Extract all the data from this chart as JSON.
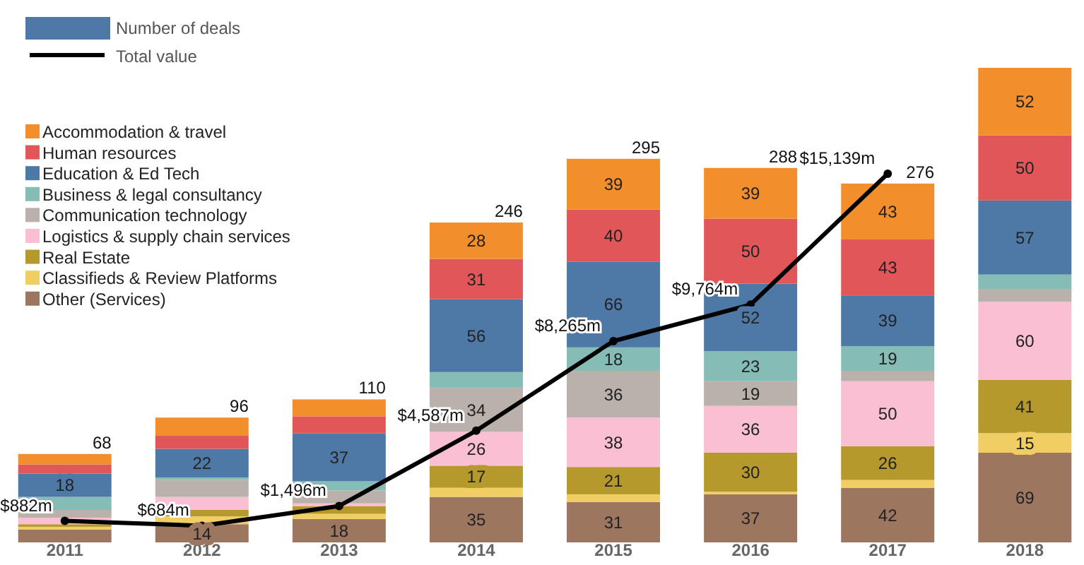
{
  "chart_data": {
    "type": "bar",
    "stacked": true,
    "legend": "top left",
    "legend_title": "Number of deals",
    "tick_labels": "x",
    "categories": [
      "2011",
      "2012",
      "2013",
      "2014",
      "2015",
      "2016",
      "2017",
      "2018"
    ],
    "totals": [
      "68",
      "96",
      "110",
      "246",
      "295",
      "288",
      "276",
      null
    ],
    "series": [
      {
        "name": "Other (Services)",
        "color": "#9d7660",
        "values": [
          10,
          14,
          18,
          35,
          31,
          37,
          42,
          69
        ],
        "value_labels": [
          null,
          "14",
          "18",
          "35",
          "31",
          "37",
          "42",
          "69"
        ]
      },
      {
        "name": "Classifieds & Review Platforms",
        "color": "#f1ce63",
        "values": [
          2,
          6,
          4,
          7,
          6,
          2,
          6,
          15
        ],
        "value_labels": [
          null,
          null,
          null,
          null,
          null,
          null,
          null,
          "15"
        ]
      },
      {
        "name": "Real Estate",
        "color": "#b6992d",
        "values": [
          2,
          5,
          6,
          17,
          21,
          30,
          26,
          41
        ],
        "value_labels": [
          null,
          null,
          null,
          "17",
          "21",
          "30",
          "26",
          "41"
        ]
      },
      {
        "name": "Logistics & supply chain services",
        "color": "#fabfd2",
        "values": [
          5,
          10,
          2,
          26,
          38,
          36,
          50,
          60
        ],
        "value_labels": [
          null,
          null,
          null,
          "26",
          "38",
          "36",
          "50",
          "60"
        ]
      },
      {
        "name": "Communication technology",
        "color": "#bab0ac",
        "values": [
          6,
          13,
          10,
          34,
          36,
          19,
          8,
          10
        ],
        "value_labels": [
          null,
          null,
          null,
          "34",
          "36",
          "19",
          null,
          null
        ]
      },
      {
        "name": "Business & legal consultancy",
        "color": "#86bcb6",
        "values": [
          10,
          2,
          7,
          12,
          18,
          23,
          19,
          11
        ],
        "value_labels": [
          null,
          null,
          null,
          null,
          "18",
          "23",
          "19",
          null
        ]
      },
      {
        "name": "Education & Ed Tech",
        "color": "#4e79a7",
        "values": [
          18,
          22,
          37,
          56,
          66,
          52,
          39,
          57
        ],
        "value_labels": [
          "18",
          "22",
          "37",
          "56",
          "66",
          "52",
          "39",
          "57"
        ]
      },
      {
        "name": "Human resources",
        "color": "#e15759",
        "values": [
          7,
          10,
          13,
          31,
          40,
          50,
          43,
          50
        ],
        "value_labels": [
          null,
          null,
          null,
          "31",
          "40",
          "50",
          "43",
          "50"
        ]
      },
      {
        "name": "Accommodation & travel",
        "color": "#f28e2b",
        "values": [
          8,
          14,
          13,
          28,
          39,
          39,
          43,
          52
        ],
        "value_labels": [
          null,
          null,
          null,
          "28",
          "39",
          "39",
          "43",
          "52"
        ]
      },
      {
        "name": "Total value",
        "type": "line",
        "axis": "y2",
        "color": "#000000",
        "marker": "circle",
        "values": [
          882,
          684,
          1496,
          4587,
          8265,
          9764,
          15139,
          null
        ],
        "value_labels": [
          "$882m",
          "$684m",
          "$1,496m",
          "$4,587m",
          "$8,265m",
          "$9,764m",
          "$15,139m",
          null
        ]
      }
    ]
  }
}
